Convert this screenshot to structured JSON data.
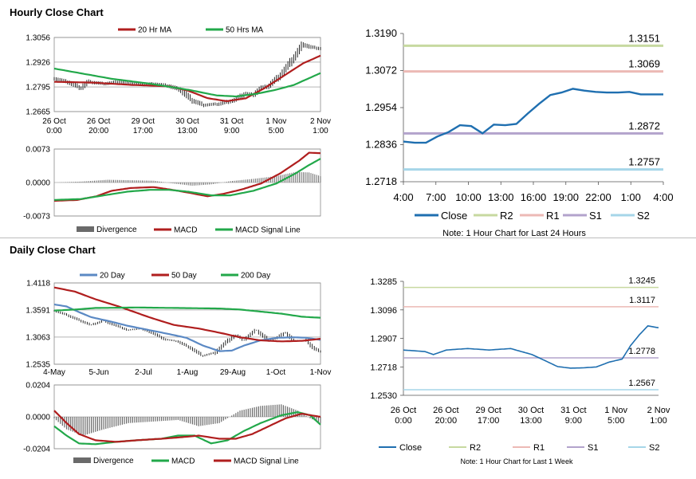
{
  "sections": {
    "hourly_title": "Hourly Close Chart",
    "daily_title": "Daily Close Chart"
  },
  "colors": {
    "grid": "#8a8a8a",
    "ma20": "#b01e1e",
    "ma50": "#22a84a",
    "bars": "#6a6a6a",
    "close_line": "#1f6fb0",
    "r2": "#c7d9a0",
    "r1": "#ecb9b5",
    "s1": "#b3a3cc",
    "s2": "#a6d6e8",
    "day20": "#5b89c4",
    "day50": "#b01e1e",
    "day200": "#22a84a"
  },
  "chart_data": [
    {
      "id": "hourly_price",
      "type": "line",
      "legend": [
        "20 Hr MA",
        "50 Hrs MA"
      ],
      "ylim": [
        1.2665,
        1.3056
      ],
      "yticks": [
        "1.3056",
        "1.2926",
        "1.2795",
        "1.2665"
      ],
      "xlabels": [
        [
          "26 Oct",
          "0:00"
        ],
        [
          "26 Oct",
          "20:00"
        ],
        [
          "29 Oct",
          "17:00"
        ],
        [
          "30 Oct",
          "13:00"
        ],
        [
          "31 Oct",
          "9:00"
        ],
        [
          "1 Nov",
          "5:00"
        ],
        [
          "2 Nov",
          "1:00"
        ]
      ],
      "n": 140,
      "close_anchors": [
        [
          0,
          1.284
        ],
        [
          8,
          1.2818
        ],
        [
          14,
          1.279
        ],
        [
          18,
          1.2822
        ],
        [
          26,
          1.2812
        ],
        [
          34,
          1.2822
        ],
        [
          44,
          1.2808
        ],
        [
          52,
          1.2812
        ],
        [
          60,
          1.28
        ],
        [
          66,
          1.278
        ],
        [
          72,
          1.2725
        ],
        [
          78,
          1.27
        ],
        [
          86,
          1.2705
        ],
        [
          94,
          1.2725
        ],
        [
          100,
          1.276
        ],
        [
          104,
          1.2755
        ],
        [
          108,
          1.2788
        ],
        [
          112,
          1.28
        ],
        [
          118,
          1.2855
        ],
        [
          122,
          1.2905
        ],
        [
          126,
          1.296
        ],
        [
          130,
          1.302
        ],
        [
          134,
          1.3005
        ],
        [
          139,
          1.2998
        ]
      ],
      "series": [
        {
          "name": "20 Hr MA",
          "anchors": [
            [
              0,
              1.2822
            ],
            [
              20,
              1.2818
            ],
            [
              40,
              1.2806
            ],
            [
              60,
              1.2798
            ],
            [
              70,
              1.2775
            ],
            [
              80,
              1.2736
            ],
            [
              90,
              1.272
            ],
            [
              100,
              1.2735
            ],
            [
              110,
              1.279
            ],
            [
              120,
              1.2855
            ],
            [
              130,
              1.292
            ],
            [
              139,
              1.296
            ]
          ]
        },
        {
          "name": "50 Hrs MA",
          "anchors": [
            [
              0,
              1.2892
            ],
            [
              15,
              1.2865
            ],
            [
              30,
              1.2838
            ],
            [
              50,
              1.2812
            ],
            [
              70,
              1.278
            ],
            [
              85,
              1.275
            ],
            [
              95,
              1.2745
            ],
            [
              105,
              1.2758
            ],
            [
              115,
              1.2778
            ],
            [
              125,
              1.2805
            ],
            [
              139,
              1.2868
            ]
          ]
        }
      ]
    },
    {
      "id": "hourly_macd",
      "type": "line",
      "legend": [
        "Divergence",
        "MACD",
        "MACD Signal Line"
      ],
      "ylim": [
        -0.0073,
        0.0073
      ],
      "yticks": [
        "0.0073",
        "0.0000",
        "-0.0073"
      ],
      "n": 140,
      "divergence_anchors": [
        [
          0,
          0.0
        ],
        [
          14,
          0.0002
        ],
        [
          28,
          0.0006
        ],
        [
          40,
          0.0005
        ],
        [
          52,
          0.0004
        ],
        [
          62,
          -0.0002
        ],
        [
          72,
          -0.0007
        ],
        [
          82,
          -0.0004
        ],
        [
          92,
          0.0003
        ],
        [
          104,
          0.0008
        ],
        [
          116,
          0.0014
        ],
        [
          126,
          0.0023
        ],
        [
          133,
          0.0022
        ],
        [
          139,
          0.0014
        ]
      ],
      "series": [
        {
          "name": "MACD",
          "anchors": [
            [
              0,
              -0.004
            ],
            [
              12,
              -0.0038
            ],
            [
              22,
              -0.003
            ],
            [
              30,
              -0.0018
            ],
            [
              40,
              -0.0012
            ],
            [
              52,
              -0.001
            ],
            [
              60,
              -0.0015
            ],
            [
              70,
              -0.0022
            ],
            [
              80,
              -0.003
            ],
            [
              88,
              -0.0025
            ],
            [
              98,
              -0.0015
            ],
            [
              108,
              -0.0002
            ],
            [
              118,
              0.002
            ],
            [
              128,
              0.0048
            ],
            [
              133,
              0.0065
            ],
            [
              139,
              0.0064
            ]
          ]
        },
        {
          "name": "MACD Signal Line",
          "anchors": [
            [
              0,
              -0.0038
            ],
            [
              14,
              -0.0036
            ],
            [
              26,
              -0.0028
            ],
            [
              38,
              -0.002
            ],
            [
              50,
              -0.0016
            ],
            [
              60,
              -0.0016
            ],
            [
              70,
              -0.002
            ],
            [
              82,
              -0.0028
            ],
            [
              92,
              -0.0028
            ],
            [
              104,
              -0.0018
            ],
            [
              116,
              -0.0002
            ],
            [
              126,
              0.002
            ],
            [
              133,
              0.0038
            ],
            [
              139,
              0.0052
            ]
          ]
        }
      ]
    },
    {
      "id": "daily_price",
      "type": "line",
      "legend": [
        "20 Day",
        "50 Day",
        "200 Day"
      ],
      "ylim": [
        1.2535,
        1.4118
      ],
      "yticks": [
        "1.4118",
        "1.3591",
        "1.3063",
        "1.2535"
      ],
      "xlabels": [
        "4-May",
        "5-Jun",
        "2-Jul",
        "1-Aug",
        "29-Aug",
        "1-Oct",
        "1-Nov"
      ],
      "n": 130,
      "close_anchors": [
        [
          0,
          1.358
        ],
        [
          6,
          1.35
        ],
        [
          12,
          1.34
        ],
        [
          18,
          1.33
        ],
        [
          24,
          1.338
        ],
        [
          30,
          1.329
        ],
        [
          36,
          1.32
        ],
        [
          42,
          1.323
        ],
        [
          48,
          1.314
        ],
        [
          54,
          1.302
        ],
        [
          60,
          1.298
        ],
        [
          66,
          1.286
        ],
        [
          72,
          1.27
        ],
        [
          78,
          1.276
        ],
        [
          84,
          1.298
        ],
        [
          88,
          1.31
        ],
        [
          92,
          1.301
        ],
        [
          98,
          1.32
        ],
        [
          104,
          1.3
        ],
        [
          108,
          1.305
        ],
        [
          112,
          1.315
        ],
        [
          116,
          1.3
        ],
        [
          122,
          1.3
        ],
        [
          126,
          1.285
        ],
        [
          129,
          1.278
        ]
      ],
      "series": [
        {
          "name": "20 Day",
          "anchors": [
            [
              0,
              1.37
            ],
            [
              6,
              1.366
            ],
            [
              12,
              1.355
            ],
            [
              18,
              1.345
            ],
            [
              26,
              1.338
            ],
            [
              36,
              1.328
            ],
            [
              46,
              1.32
            ],
            [
              56,
              1.312
            ],
            [
              64,
              1.305
            ],
            [
              72,
              1.29
            ],
            [
              80,
              1.279
            ],
            [
              86,
              1.28
            ],
            [
              92,
              1.29
            ],
            [
              100,
              1.3
            ],
            [
              108,
              1.305
            ],
            [
              116,
              1.306
            ],
            [
              122,
              1.305
            ],
            [
              129,
              1.301
            ]
          ]
        },
        {
          "name": "50 Day",
          "anchors": [
            [
              0,
              1.403
            ],
            [
              10,
              1.395
            ],
            [
              20,
              1.38
            ],
            [
              32,
              1.365
            ],
            [
              46,
              1.345
            ],
            [
              58,
              1.33
            ],
            [
              70,
              1.323
            ],
            [
              80,
              1.315
            ],
            [
              90,
              1.306
            ],
            [
              100,
              1.3
            ],
            [
              110,
              1.298
            ],
            [
              120,
              1.299
            ],
            [
              129,
              1.303
            ]
          ]
        },
        {
          "name": "200 Day",
          "anchors": [
            [
              0,
              1.358
            ],
            [
              10,
              1.36
            ],
            [
              20,
              1.363
            ],
            [
              40,
              1.364
            ],
            [
              60,
              1.363
            ],
            [
              80,
              1.362
            ],
            [
              90,
              1.36
            ],
            [
              100,
              1.356
            ],
            [
              110,
              1.352
            ],
            [
              120,
              1.346
            ],
            [
              129,
              1.344
            ]
          ]
        }
      ]
    },
    {
      "id": "daily_macd",
      "type": "line",
      "legend": [
        "Divergence",
        "MACD",
        "MACD Signal Line"
      ],
      "ylim": [
        -0.0204,
        0.0204
      ],
      "yticks": [
        "0.0204",
        "0.0000",
        "-0.0204"
      ],
      "n": 130,
      "divergence_anchors": [
        [
          0,
          -0.001
        ],
        [
          6,
          -0.008
        ],
        [
          14,
          -0.012
        ],
        [
          24,
          -0.008
        ],
        [
          36,
          -0.004
        ],
        [
          48,
          -0.003
        ],
        [
          60,
          -0.002
        ],
        [
          70,
          -0.006
        ],
        [
          80,
          -0.004
        ],
        [
          90,
          0.004
        ],
        [
          100,
          0.007
        ],
        [
          110,
          0.008
        ],
        [
          118,
          0.004
        ],
        [
          124,
          -0.001
        ],
        [
          129,
          -0.004
        ]
      ],
      "series": [
        {
          "name": "MACD",
          "anchors": [
            [
              0,
              -0.006
            ],
            [
              6,
              -0.012
            ],
            [
              12,
              -0.017
            ],
            [
              20,
              -0.0175
            ],
            [
              30,
              -0.016
            ],
            [
              40,
              -0.015
            ],
            [
              52,
              -0.014
            ],
            [
              60,
              -0.012
            ],
            [
              68,
              -0.012
            ],
            [
              76,
              -0.017
            ],
            [
              84,
              -0.015
            ],
            [
              92,
              -0.009
            ],
            [
              100,
              -0.004
            ],
            [
              110,
              0.001
            ],
            [
              118,
              0.003
            ],
            [
              124,
              0.001
            ],
            [
              129,
              -0.005
            ]
          ]
        },
        {
          "name": "MACD Signal Line",
          "anchors": [
            [
              0,
              0.004
            ],
            [
              6,
              -0.004
            ],
            [
              12,
              -0.011
            ],
            [
              20,
              -0.015
            ],
            [
              30,
              -0.016
            ],
            [
              40,
              -0.015
            ],
            [
              52,
              -0.014
            ],
            [
              62,
              -0.013
            ],
            [
              70,
              -0.012
            ],
            [
              80,
              -0.014
            ],
            [
              88,
              -0.014
            ],
            [
              96,
              -0.011
            ],
            [
              104,
              -0.006
            ],
            [
              112,
              -0.001
            ],
            [
              120,
              0.002
            ],
            [
              129,
              0.0
            ]
          ]
        }
      ]
    },
    {
      "id": "pivot_24h",
      "type": "line",
      "legend": [
        "Close",
        "R2",
        "R1",
        "S1",
        "S2"
      ],
      "ylim": [
        1.2718,
        1.319
      ],
      "yticks": [
        "1.3190",
        "1.3072",
        "1.2954",
        "1.2836",
        "1.2718"
      ],
      "xlabels": [
        "4:00",
        "7:00",
        "10:00",
        "13:00",
        "16:00",
        "19:00",
        "22:00",
        "1:00",
        "4:00"
      ],
      "levels": [
        {
          "name": "R2",
          "value": 1.3151,
          "label": "1.3151"
        },
        {
          "name": "R1",
          "value": 1.3069,
          "label": "1.3069"
        },
        {
          "name": "S1",
          "value": 1.2872,
          "label": "1.2872"
        },
        {
          "name": "S2",
          "value": 1.2757,
          "label": "1.2757"
        }
      ],
      "close": [
        1.2846,
        1.2842,
        1.2842,
        1.2862,
        1.2876,
        1.2898,
        1.2895,
        1.2872,
        1.29,
        1.2898,
        1.2902,
        1.2935,
        1.2966,
        1.2994,
        1.3002,
        1.3014,
        1.3008,
        1.3004,
        1.3002,
        1.3002,
        1.3004,
        1.2996,
        1.2996,
        1.2996
      ],
      "note": "Note: 1 Hour Chart for Last 24 Hours"
    },
    {
      "id": "pivot_1w",
      "type": "line",
      "legend": [
        "Close",
        "R2",
        "R1",
        "S1",
        "S2"
      ],
      "ylim": [
        1.253,
        1.3285
      ],
      "yticks": [
        "1.3285",
        "1.3096",
        "1.2907",
        "1.2718",
        "1.2530"
      ],
      "xlabels": [
        [
          "26 Oct",
          "0:00"
        ],
        [
          "26 Oct",
          "20:00"
        ],
        [
          "29 Oct",
          "17:00"
        ],
        [
          "30 Oct",
          "13:00"
        ],
        [
          "31 Oct",
          "9:00"
        ],
        [
          "1 Nov",
          "5:00"
        ],
        [
          "2 Nov",
          "1:00"
        ]
      ],
      "levels": [
        {
          "name": "R2",
          "value": 1.3245,
          "label": "1.3245"
        },
        {
          "name": "R1",
          "value": 1.3117,
          "label": "1.3117"
        },
        {
          "name": "S1",
          "value": 1.2778,
          "label": "1.2778"
        },
        {
          "name": "S2",
          "value": 1.2567,
          "label": "1.2567"
        }
      ],
      "n": 120,
      "close_anchors": [
        [
          0,
          1.283
        ],
        [
          10,
          1.282
        ],
        [
          14,
          1.28
        ],
        [
          20,
          1.283
        ],
        [
          30,
          1.284
        ],
        [
          40,
          1.283
        ],
        [
          50,
          1.284
        ],
        [
          60,
          1.28
        ],
        [
          66,
          1.276
        ],
        [
          72,
          1.272
        ],
        [
          78,
          1.271
        ],
        [
          84,
          1.2712
        ],
        [
          90,
          1.2718
        ],
        [
          96,
          1.275
        ],
        [
          102,
          1.277
        ],
        [
          106,
          1.286
        ],
        [
          110,
          1.293
        ],
        [
          114,
          1.299
        ],
        [
          120,
          1.2975
        ]
      ],
      "note": "Note: 1 Hour Chart for Last 1 Week"
    }
  ]
}
